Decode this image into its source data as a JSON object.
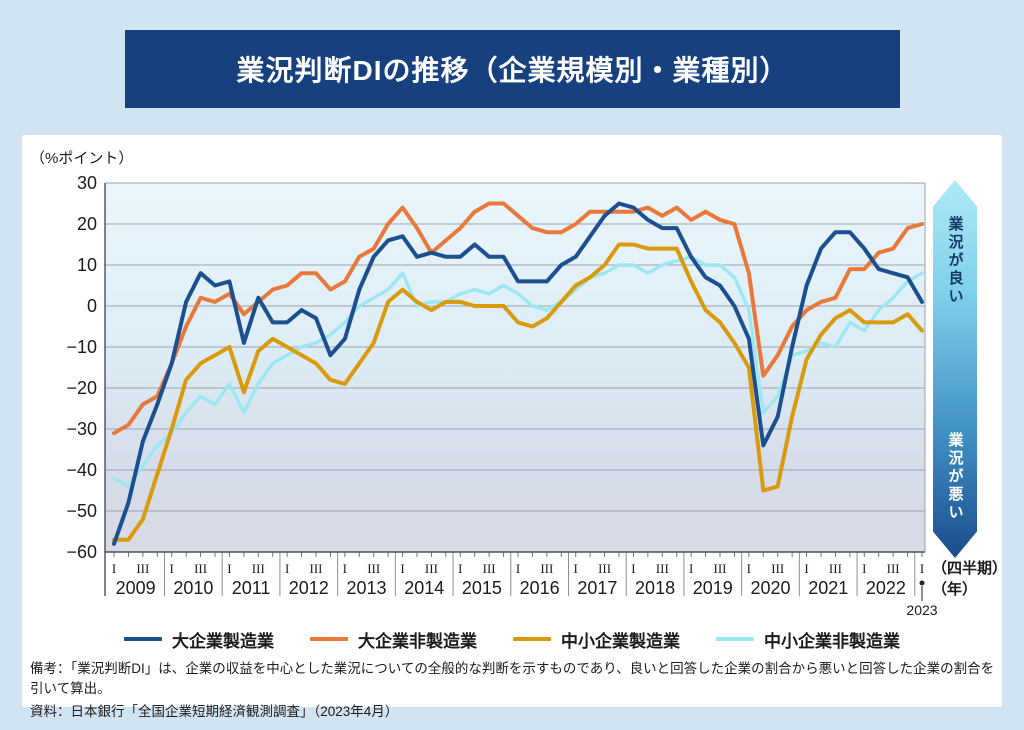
{
  "title": "業況判断DIの推移（企業規模別・業種別）",
  "y_unit_label": "（%ポイント）",
  "axis_note_quarter": "（四半期）",
  "axis_note_year": "（年）",
  "arrow": {
    "top_label": "業況が良い",
    "bottom_label": "業況が悪い",
    "gradient_top_color": "#aeeaf7",
    "gradient_bottom_color": "#1b4b8c"
  },
  "notes": [
    "備考：「業況判断DI」は、企業の収益を中心とした業況についての全般的な判断を示すものであり、良いと回答した企業の割合から悪いと回答した企業の割合を引いて算出。",
    "資料：日本銀行「全国企業短期経済観測調査」（2023年4月）"
  ],
  "chart_data": {
    "type": "line",
    "x_unit": "quarter",
    "years": [
      "2009",
      "2010",
      "2011",
      "2012",
      "2013",
      "2014",
      "2015",
      "2016",
      "2017",
      "2018",
      "2019",
      "2020",
      "2021",
      "2022"
    ],
    "final_point_year": "2023",
    "quarter_tick_labels": [
      "I",
      "III"
    ],
    "y_ticks": [
      30,
      20,
      10,
      0,
      -10,
      -20,
      -30,
      -40,
      -50,
      -60
    ],
    "ylim": [
      -60,
      30
    ],
    "grid": true,
    "legend_position": "bottom",
    "series": [
      {
        "name": "大企業製造業",
        "color": "#1b4f8f",
        "values": [
          -58,
          -48,
          -33,
          -24,
          -14,
          1,
          8,
          5,
          6,
          -9,
          2,
          -4,
          -4,
          -1,
          -3,
          -12,
          -8,
          4,
          12,
          16,
          17,
          12,
          13,
          12,
          12,
          15,
          12,
          12,
          6,
          6,
          6,
          10,
          12,
          17,
          22,
          25,
          24,
          21,
          19,
          19,
          12,
          7,
          5,
          0,
          -8,
          -34,
          -27,
          -10,
          5,
          14,
          18,
          18,
          14,
          9,
          8,
          7,
          1
        ]
      },
      {
        "name": "大企業非製造業",
        "color": "#e8793a",
        "values": [
          -31,
          -29,
          -24,
          -22,
          -14,
          -5,
          2,
          1,
          3,
          -2,
          1,
          4,
          5,
          8,
          8,
          4,
          6,
          12,
          14,
          20,
          24,
          19,
          13,
          16,
          19,
          23,
          25,
          25,
          22,
          19,
          18,
          18,
          20,
          23,
          23,
          23,
          23,
          24,
          22,
          24,
          21,
          23,
          21,
          20,
          8,
          -17,
          -12,
          -5,
          -1,
          1,
          2,
          9,
          9,
          13,
          14,
          19,
          20
        ]
      },
      {
        "name": "中小企業製造業",
        "color": "#d99b0d",
        "values": [
          -57,
          -57,
          -52,
          -41,
          -30,
          -18,
          -14,
          -12,
          -10,
          -21,
          -11,
          -8,
          -10,
          -12,
          -14,
          -18,
          -19,
          -14,
          -9,
          1,
          4,
          1,
          -1,
          1,
          1,
          0,
          0,
          0,
          -4,
          -5,
          -3,
          1,
          5,
          7,
          10,
          15,
          15,
          14,
          14,
          14,
          6,
          -1,
          -4,
          -9,
          -15,
          -45,
          -44,
          -27,
          -13,
          -7,
          -3,
          -1,
          -4,
          -4,
          -4,
          -2,
          -6
        ]
      },
      {
        "name": "中小企業非製造業",
        "color": "#9ce7f2",
        "values": [
          -42,
          -44,
          -39,
          -34,
          -31,
          -26,
          -22,
          -24,
          -19,
          -26,
          -19,
          -14,
          -12,
          -10,
          -9,
          -7,
          -4,
          0,
          2,
          4,
          8,
          0,
          1,
          1,
          3,
          4,
          3,
          5,
          3,
          0,
          -1,
          1,
          4,
          7,
          8,
          10,
          10,
          8,
          10,
          11,
          12,
          10,
          10,
          7,
          -1,
          -26,
          -22,
          -12,
          -11,
          -9,
          -10,
          -4,
          -6,
          -1,
          2,
          6,
          8
        ]
      }
    ]
  }
}
